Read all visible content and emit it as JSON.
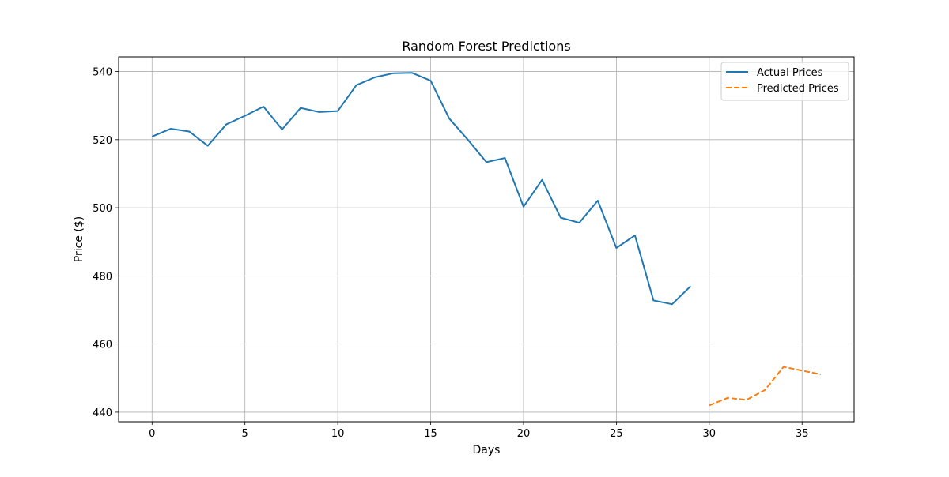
{
  "chart_data": {
    "type": "line",
    "title": "Random Forest Predictions",
    "xlabel": "Days",
    "ylabel": "Price ($)",
    "xlim": [
      -1.8,
      37.8
    ],
    "ylim": [
      437.2,
      544.3
    ],
    "xticks": [
      0,
      5,
      10,
      15,
      20,
      25,
      30,
      35
    ],
    "yticks": [
      440,
      460,
      480,
      500,
      520,
      540
    ],
    "grid": true,
    "legend_position": "top-right",
    "series": [
      {
        "name": "Actual Prices",
        "color": "#1f77b4",
        "style": "solid",
        "x": [
          0,
          1,
          2,
          3,
          4,
          5,
          6,
          7,
          8,
          9,
          10,
          11,
          12,
          13,
          14,
          15,
          16,
          17,
          18,
          19,
          20,
          21,
          22,
          23,
          24,
          25,
          26,
          27,
          28,
          29
        ],
        "values": [
          520.9,
          523.2,
          522.4,
          518.2,
          524.5,
          527.0,
          529.7,
          523.0,
          529.3,
          528.1,
          528.4,
          536.0,
          538.3,
          539.5,
          539.6,
          537.3,
          526.2,
          520.0,
          513.4,
          514.6,
          500.3,
          508.2,
          497.1,
          495.6,
          502.1,
          488.2,
          491.9,
          472.8,
          471.7,
          477.0
        ]
      },
      {
        "name": "Predicted Prices",
        "color": "#ff7f0e",
        "style": "dashed",
        "x": [
          30,
          31,
          32,
          33,
          34,
          35,
          36
        ],
        "values": [
          442.0,
          444.2,
          443.6,
          446.5,
          453.3,
          452.2,
          451.1
        ]
      }
    ]
  }
}
